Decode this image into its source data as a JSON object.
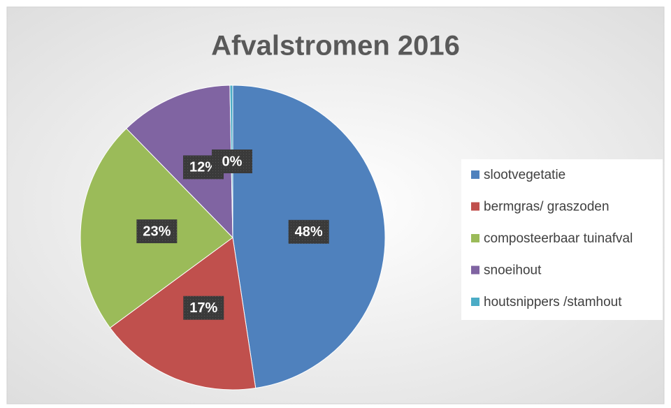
{
  "chart_data": {
    "type": "pie",
    "title": "Afvalstromen 2016",
    "categories": [
      "slootvegetatie",
      "bermgras/ graszoden",
      "composteerbaar tuinafval",
      "snoeihout",
      "houtsnippers /stamhout"
    ],
    "values": [
      47.6,
      17.3,
      22.8,
      12.0,
      0.3
    ],
    "value_labels": [
      "48%",
      "17%",
      "23%",
      "12%",
      "0%"
    ],
    "colors": [
      "#4f81bd",
      "#c0504d",
      "#9bbb59",
      "#8064a2",
      "#4bacc6"
    ],
    "legend": "right"
  }
}
